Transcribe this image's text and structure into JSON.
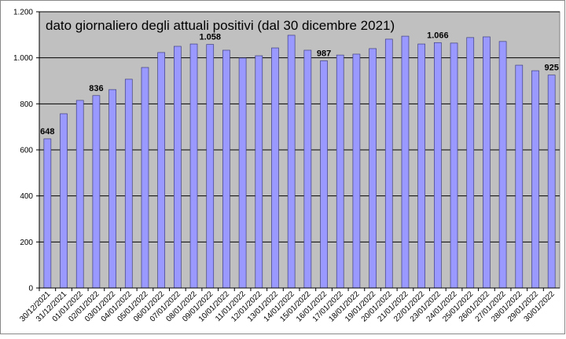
{
  "chart_data": {
    "type": "bar",
    "title": "dato giornaliero degli attuali positivi (dal 30 dicembre 2021)",
    "categories": [
      "30/12/2021",
      "31/12/2021",
      "01/01/2022",
      "02/01/2022",
      "03/01/2022",
      "04/01/2022",
      "05/01/2022",
      "06/01/2022",
      "07/01/2022",
      "08/01/2022",
      "09/01/2022",
      "10/01/2022",
      "11/01/2022",
      "12/01/2022",
      "13/01/2022",
      "14/01/2022",
      "15/01/2022",
      "16/01/2022",
      "17/01/2022",
      "18/01/2022",
      "19/01/2022",
      "20/01/2022",
      "21/01/2022",
      "22/01/2022",
      "23/01/2022",
      "24/01/2022",
      "25/01/2022",
      "26/01/2022",
      "27/01/2022",
      "28/01/2022",
      "29/01/2022",
      "30/01/2022"
    ],
    "values": [
      648,
      757,
      815,
      836,
      862,
      907,
      958,
      1023,
      1050,
      1060,
      1058,
      1033,
      999,
      1009,
      1043,
      1098,
      1033,
      987,
      1012,
      1016,
      1040,
      1081,
      1094,
      1060,
      1066,
      1064,
      1088,
      1091,
      1071,
      968,
      944,
      925
    ],
    "value_labels": [
      "648",
      null,
      null,
      "836",
      null,
      null,
      null,
      null,
      null,
      null,
      "1.058",
      null,
      null,
      null,
      null,
      null,
      null,
      "987",
      null,
      null,
      null,
      null,
      null,
      null,
      "1.066",
      null,
      null,
      null,
      null,
      null,
      null,
      "925"
    ],
    "color": "#9999ff",
    "ylim": [
      0,
      1200
    ],
    "yticks": [
      0,
      200,
      400,
      600,
      800,
      {
        "value": 1000,
        "label": "1.000"
      },
      {
        "value": 1200,
        "label": "1.200"
      }
    ],
    "grid": true
  }
}
